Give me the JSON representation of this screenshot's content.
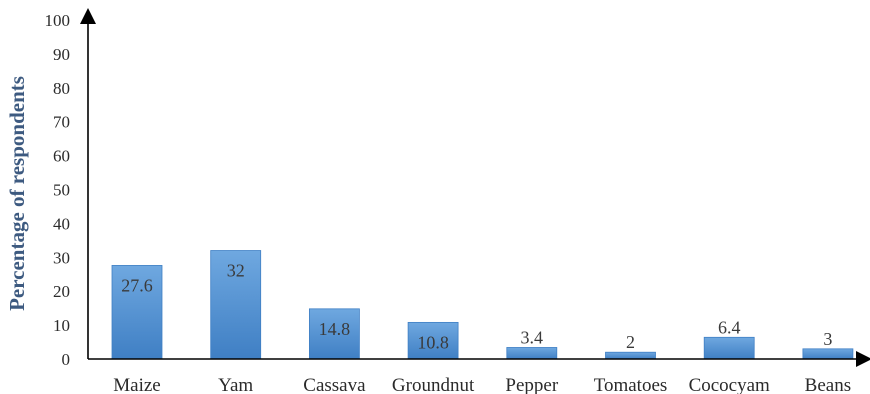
{
  "chart_data": {
    "type": "bar",
    "categories": [
      "Maize",
      "Yam",
      "Cassava",
      "Groundnut",
      "Pepper",
      "Tomatoes",
      "Cococyam",
      "Beans"
    ],
    "values": [
      27.6,
      32,
      14.8,
      10.8,
      3.4,
      2,
      6.4,
      3
    ],
    "data_labels": [
      "27.6",
      "32",
      "14.8",
      "10.8",
      "3.4",
      "2",
      "6.4",
      "3"
    ],
    "title": "",
    "xlabel": "",
    "ylabel": "Percentage of respondents",
    "ylim": [
      0,
      100
    ],
    "yticks": [
      0,
      10,
      20,
      30,
      40,
      50,
      60,
      70,
      80,
      90,
      100
    ],
    "grid": false,
    "legend": "none",
    "colors": {
      "bar_top": "#6fa8e0",
      "bar_bottom": "#3f7fc4",
      "axis": "#000000",
      "ylabel": "#3d5a80"
    }
  }
}
